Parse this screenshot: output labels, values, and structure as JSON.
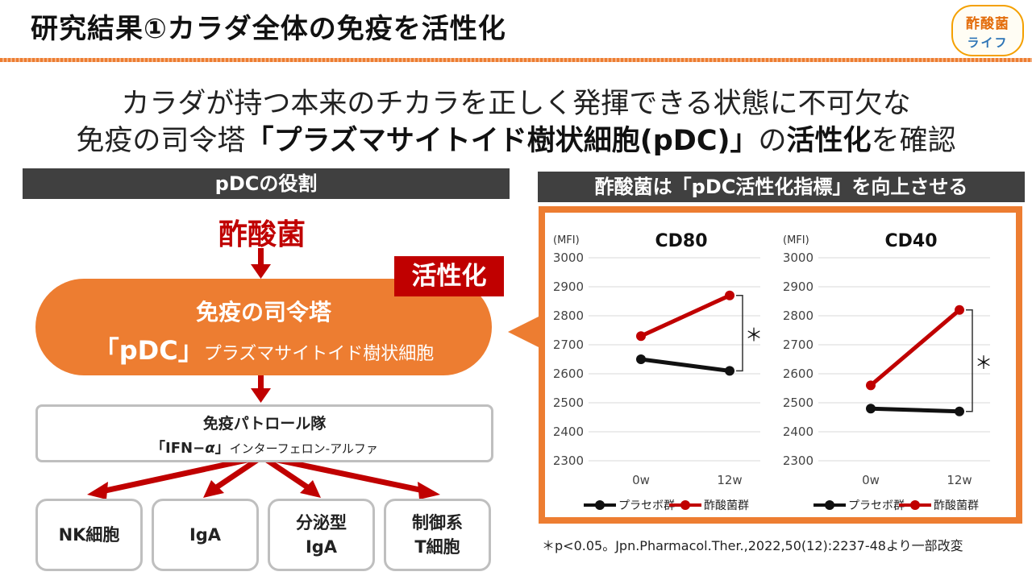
{
  "header": {
    "title": "研究結果①カラダ全体の免疫を活性化",
    "logo_line1": "酢酸菌",
    "logo_line2": "ライフ"
  },
  "lead": {
    "line1": "カラダが持つ本来のチカラを正しく発揮できる状態に不可欠な",
    "line2_pre": "免疫の司令塔",
    "line2_bold1": "「プラズマサイトイド樹状細胞(pDC)」",
    "line2_mid": "の",
    "line2_bold2": "活性化",
    "line2_post": "を確認"
  },
  "left_panel": {
    "heading": "pDCの役割",
    "source": "酢酸菌",
    "badge": "活性化",
    "bubble_line1": "免疫の司令塔",
    "bubble_line2_main": "「pDC」",
    "bubble_line2_sub": "プラズマサイトイド樹状細胞",
    "ifn_line1": "免疫パトロール隊",
    "ifn_line2_main": "「IFN−",
    "ifn_line2_alpha": "α",
    "ifn_line2_close": "」",
    "ifn_line2_sub": "インターフェロン-アルファ",
    "cells": [
      {
        "label": "NK細胞"
      },
      {
        "label": "IgA"
      },
      {
        "label": "分泌型\nIgA"
      },
      {
        "label": "制御系\nT細胞"
      }
    ]
  },
  "right_panel": {
    "heading": "酢酸菌は「pDC活性化指標」を向上させる",
    "footnote": "＊p<0.05。Jpn.Pharmacol.Ther.,2022,50(12):2237-48より一部改変"
  },
  "colors": {
    "accent_orange": "#ed7d31",
    "dark_red": "#c00000",
    "header_gray": "#404040",
    "placebo": "#111111",
    "acetic": "#c00000"
  },
  "chart_data": [
    {
      "type": "line",
      "title": "CD80",
      "ylabel": "(MFI)",
      "categories": [
        "0w",
        "12w"
      ],
      "ylim": [
        2300,
        3000
      ],
      "yticks": [
        2300,
        2400,
        2500,
        2600,
        2700,
        2800,
        2900,
        3000
      ],
      "series": [
        {
          "name": "プラセボ群",
          "values": [
            2650,
            2610
          ]
        },
        {
          "name": "酢酸菌群",
          "values": [
            2730,
            2870
          ]
        }
      ],
      "significance": "＊",
      "legend": "bottom",
      "grid": true
    },
    {
      "type": "line",
      "title": "CD40",
      "ylabel": "(MFI)",
      "categories": [
        "0w",
        "12w"
      ],
      "ylim": [
        2300,
        3000
      ],
      "yticks": [
        2300,
        2400,
        2500,
        2600,
        2700,
        2800,
        2900,
        3000
      ],
      "series": [
        {
          "name": "プラセボ群",
          "values": [
            2480,
            2470
          ]
        },
        {
          "name": "酢酸菌群",
          "values": [
            2560,
            2820
          ]
        }
      ],
      "significance": "＊",
      "legend": "bottom",
      "grid": true
    }
  ]
}
